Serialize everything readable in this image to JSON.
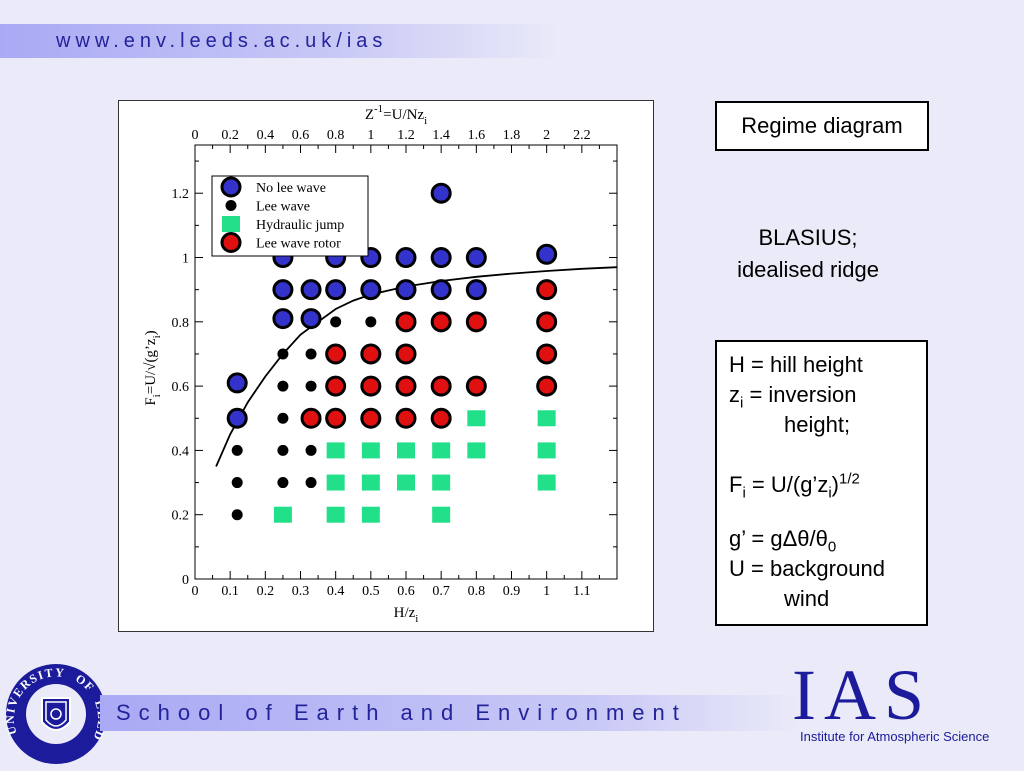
{
  "header": {
    "url": "www.env.leeds.ac.uk/ias"
  },
  "chart_data": {
    "type": "scatter",
    "xlabel": "H/z",
    "xlabel_sub": "i",
    "ylabel": "F",
    "ylabel_sub": "i",
    "ylabel_rest": "=U/√(g’z",
    "ylabel_sub2": "i",
    "ylabel_end": ")",
    "top_label_main": "Z",
    "top_label_sup": "-1",
    "top_label_rest": "=U/Nz",
    "top_label_sub": "i",
    "xlim": [
      0,
      1.2
    ],
    "ylim": [
      0,
      1.35
    ],
    "x_ticks": [
      "0",
      "0.1",
      "0.2",
      "0.3",
      "0.4",
      "0.5",
      "0.6",
      "0.7",
      "0.8",
      "0.9",
      "1",
      "1.1"
    ],
    "y_ticks": [
      "0",
      "0.2",
      "0.4",
      "0.6",
      "0.8",
      "1",
      "1.2"
    ],
    "top_ticks": [
      "0",
      "0.2",
      "0.4",
      "0.6",
      "0.8",
      "1",
      "1.2",
      "1.4",
      "1.6",
      "1.8",
      "2",
      "2.2"
    ],
    "series": [
      {
        "name": "No lee wave",
        "marker": "circle-outlined",
        "color": "#3333cc",
        "points": [
          [
            0.12,
            0.61
          ],
          [
            0.12,
            0.5
          ],
          [
            0.25,
            1.0
          ],
          [
            0.25,
            0.9
          ],
          [
            0.25,
            0.81
          ],
          [
            0.33,
            0.9
          ],
          [
            0.33,
            0.81
          ],
          [
            0.4,
            1.0
          ],
          [
            0.4,
            0.9
          ],
          [
            0.5,
            1.0
          ],
          [
            0.5,
            0.9
          ],
          [
            0.6,
            1.0
          ],
          [
            0.6,
            0.9
          ],
          [
            0.7,
            1.2
          ],
          [
            0.7,
            1.0
          ],
          [
            0.7,
            0.9
          ],
          [
            0.8,
            1.0
          ],
          [
            0.8,
            0.9
          ],
          [
            1.0,
            1.01
          ]
        ]
      },
      {
        "name": "Lee wave",
        "marker": "dot",
        "color": "#000000",
        "points": [
          [
            0.12,
            0.4
          ],
          [
            0.12,
            0.3
          ],
          [
            0.12,
            0.2
          ],
          [
            0.25,
            0.7
          ],
          [
            0.25,
            0.6
          ],
          [
            0.25,
            0.5
          ],
          [
            0.25,
            0.4
          ],
          [
            0.25,
            0.3
          ],
          [
            0.33,
            0.7
          ],
          [
            0.33,
            0.6
          ],
          [
            0.33,
            0.5
          ],
          [
            0.33,
            0.4
          ],
          [
            0.33,
            0.3
          ],
          [
            0.4,
            0.8
          ],
          [
            0.5,
            0.8
          ]
        ]
      },
      {
        "name": "Hydraulic jump",
        "marker": "square",
        "color": "#22e08a",
        "points": [
          [
            0.25,
            0.2
          ],
          [
            0.4,
            0.4
          ],
          [
            0.4,
            0.3
          ],
          [
            0.4,
            0.2
          ],
          [
            0.5,
            0.4
          ],
          [
            0.5,
            0.3
          ],
          [
            0.5,
            0.2
          ],
          [
            0.6,
            0.4
          ],
          [
            0.6,
            0.3
          ],
          [
            0.7,
            0.4
          ],
          [
            0.7,
            0.3
          ],
          [
            0.7,
            0.2
          ],
          [
            0.8,
            0.5
          ],
          [
            0.8,
            0.4
          ],
          [
            1.0,
            0.5
          ],
          [
            1.0,
            0.4
          ],
          [
            1.0,
            0.3
          ]
        ]
      },
      {
        "name": "Lee wave rotor",
        "marker": "circle-outlined",
        "color": "#e01010",
        "points": [
          [
            0.33,
            0.5
          ],
          [
            0.4,
            0.7
          ],
          [
            0.4,
            0.6
          ],
          [
            0.4,
            0.5
          ],
          [
            0.5,
            0.7
          ],
          [
            0.5,
            0.6
          ],
          [
            0.5,
            0.5
          ],
          [
            0.6,
            0.8
          ],
          [
            0.6,
            0.7
          ],
          [
            0.6,
            0.6
          ],
          [
            0.6,
            0.5
          ],
          [
            0.7,
            0.8
          ],
          [
            0.7,
            0.6
          ],
          [
            0.7,
            0.5
          ],
          [
            0.8,
            0.8
          ],
          [
            0.8,
            0.6
          ],
          [
            1.0,
            0.9
          ],
          [
            1.0,
            0.8
          ],
          [
            1.0,
            0.7
          ],
          [
            1.0,
            0.6
          ]
        ]
      }
    ],
    "curve": [
      [
        0.06,
        0.35
      ],
      [
        0.1,
        0.45
      ],
      [
        0.15,
        0.55
      ],
      [
        0.2,
        0.63
      ],
      [
        0.25,
        0.7
      ],
      [
        0.3,
        0.76
      ],
      [
        0.35,
        0.8
      ],
      [
        0.4,
        0.84
      ],
      [
        0.45,
        0.866
      ],
      [
        0.5,
        0.885
      ],
      [
        0.6,
        0.91
      ],
      [
        0.7,
        0.927
      ],
      [
        0.8,
        0.94
      ],
      [
        0.9,
        0.95
      ],
      [
        1.0,
        0.958
      ],
      [
        1.1,
        0.965
      ],
      [
        1.2,
        0.97
      ]
    ]
  },
  "regime_title": "Regime diagram",
  "blasius": {
    "line1": "BLASIUS;",
    "line2": "idealised ridge"
  },
  "definitions": {
    "h_line": "H = hill height",
    "zi_main": "z",
    "zi_sub": "i",
    "zi_rest": " = inversion",
    "zi_cont": "height;",
    "fi_main": "F",
    "fi_sub": "i",
    "fi_rest": " = U/(g’z",
    "fi_sub2": "i",
    "fi_close": ")",
    "fi_sup": "1/2",
    "g_main": "g’ = gΔθ/θ",
    "g_sub": "0",
    "u_line": "U = background",
    "u_cont": "wind"
  },
  "footer": {
    "school": "School of Earth and Environment",
    "ias_short": "IAS",
    "ias_full": "Institute for Atmospheric Science",
    "crest_text_top": "UNIVERSITY",
    "crest_text_of": "OF",
    "crest_text_leeds": "LEEDS"
  }
}
